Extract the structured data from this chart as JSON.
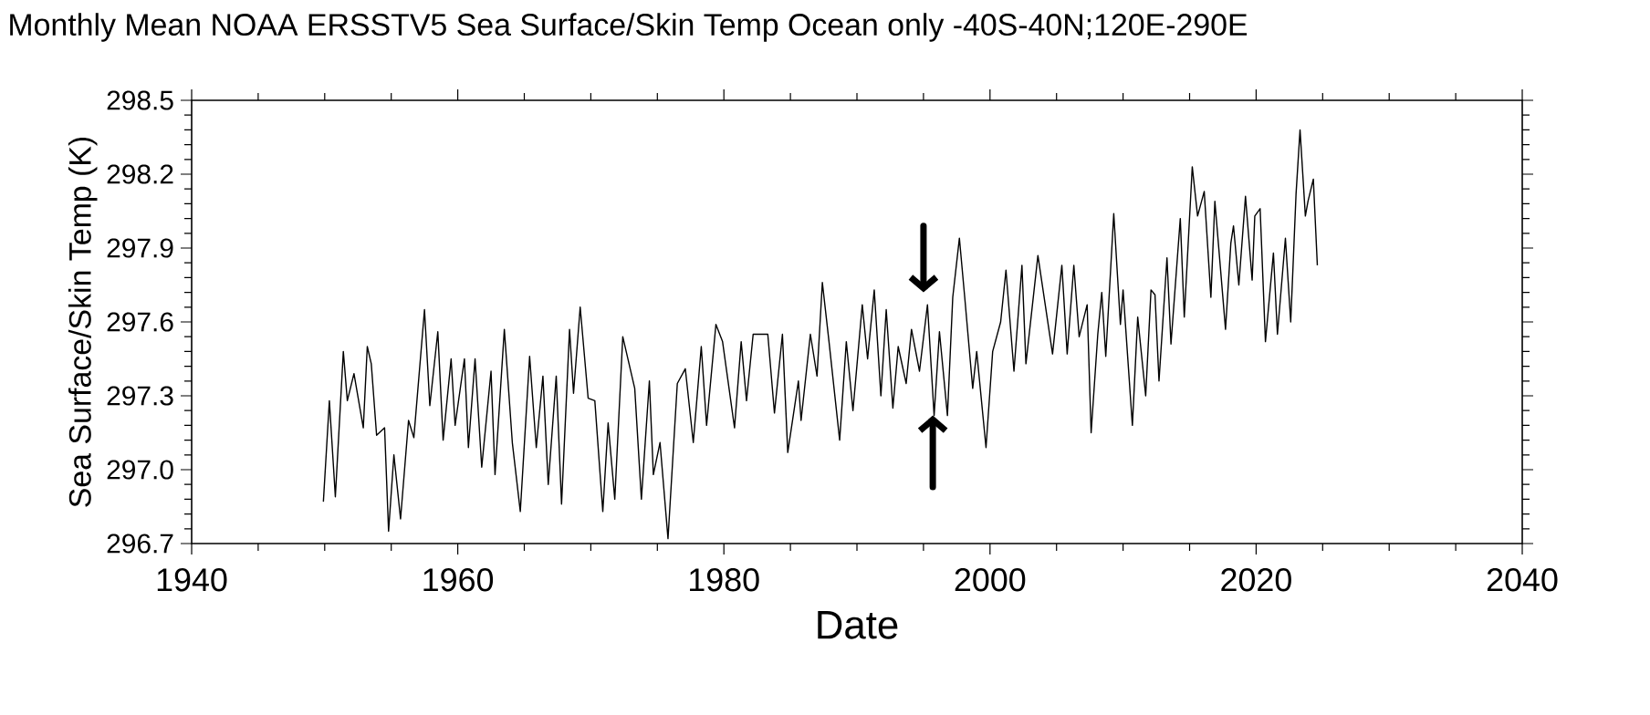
{
  "chart_data": {
    "type": "line",
    "title": "Monthly Mean NOAA ERSSTV5   Sea Surface/Skin Temp Ocean only -40S-40N;120E-290E",
    "xlabel": "Date",
    "ylabel": "Sea Surface/Skin Temp (K)",
    "xlim": [
      1940,
      2040
    ],
    "xticks": [
      1940,
      1960,
      1980,
      2000,
      2020,
      2040
    ],
    "ylim": [
      296.7,
      298.5
    ],
    "yticks": [
      {
        "value": 296.7,
        "label": "296.7"
      },
      {
        "value": 297.0,
        "label": "297.0"
      },
      {
        "value": 297.3,
        "label": "297.3"
      },
      {
        "value": 297.6,
        "label": "297.6"
      },
      {
        "value": 297.9,
        "label": "297.9"
      },
      {
        "value": 298.2,
        "label": "298.2"
      },
      {
        "value": 298.5,
        "label": "298.5"
      }
    ],
    "series": [
      {
        "color": "#000000",
        "x": [
          1949.9,
          1950.35,
          1950.8,
          1951.4,
          1951.7,
          1952.2,
          1952.9,
          1953.2,
          1953.5,
          1953.9,
          1954.5,
          1954.8,
          1955.2,
          1955.7,
          1956.3,
          1956.7,
          1957.5,
          1957.9,
          1958.5,
          1958.9,
          1959.5,
          1959.8,
          1960.5,
          1960.8,
          1961.3,
          1961.8,
          1962.5,
          1962.8,
          1963.5,
          1964.1,
          1964.7,
          1965.4,
          1965.9,
          1966.4,
          1966.8,
          1967.4,
          1967.8,
          1968.4,
          1968.7,
          1969.2,
          1969.8,
          1970.3,
          1970.9,
          1971.3,
          1971.8,
          1972.4,
          1973.3,
          1973.8,
          1974.4,
          1974.7,
          1975.2,
          1975.8,
          1976.5,
          1977.1,
          1977.7,
          1978.3,
          1978.7,
          1979.4,
          1979.9,
          1980.8,
          1981.3,
          1981.7,
          1982.2,
          1983.3,
          1983.8,
          1984.4,
          1984.8,
          1985.6,
          1985.8,
          1986.5,
          1987.0,
          1987.4,
          1987.9,
          1988.7,
          1989.2,
          1989.7,
          1990.4,
          1990.8,
          1991.3,
          1991.8,
          1992.2,
          1992.7,
          1993.1,
          1993.7,
          1994.1,
          1994.7,
          1995.3,
          1995.8,
          1996.2,
          1996.8,
          1997.2,
          1997.7,
          1998.1,
          1998.7,
          1999.0,
          1999.7,
          2000.2,
          2000.8,
          2001.2,
          2001.8,
          2002.4,
          2002.7,
          2003.6,
          2004.7,
          2005.4,
          2005.8,
          2006.3,
          2006.7,
          2007.3,
          2007.6,
          2008.1,
          2008.4,
          2008.7,
          2009.3,
          2009.8,
          2010.0,
          2010.7,
          2011.1,
          2011.7,
          2012.1,
          2012.4,
          2012.7,
          2013.3,
          2013.6,
          2014.3,
          2014.6,
          2015.2,
          2015.6,
          2016.1,
          2016.6,
          2016.9,
          2017.7,
          2018.1,
          2018.3,
          2018.7,
          2019.2,
          2019.7,
          2019.9,
          2020.3,
          2020.7,
          2021.3,
          2021.6,
          2022.2,
          2022.6,
          2023.0,
          2023.3,
          2023.7,
          2023.9,
          2024.3,
          2024.6
        ],
        "values": [
          296.87,
          297.28,
          296.89,
          297.48,
          297.28,
          297.39,
          297.17,
          297.5,
          297.43,
          297.14,
          297.17,
          296.75,
          297.06,
          296.8,
          297.2,
          297.13,
          297.65,
          297.26,
          297.56,
          297.12,
          297.45,
          297.18,
          297.45,
          297.09,
          297.45,
          297.01,
          297.4,
          296.98,
          297.57,
          297.11,
          296.83,
          297.46,
          297.09,
          297.38,
          296.94,
          297.38,
          296.86,
          297.57,
          297.31,
          297.66,
          297.29,
          297.28,
          296.83,
          297.19,
          296.88,
          297.54,
          297.33,
          296.88,
          297.36,
          296.98,
          297.11,
          296.72,
          297.35,
          297.41,
          297.11,
          297.5,
          297.18,
          297.59,
          297.52,
          297.17,
          297.52,
          297.28,
          297.55,
          297.55,
          297.23,
          297.55,
          297.07,
          297.36,
          297.2,
          297.55,
          297.38,
          297.76,
          297.52,
          297.12,
          297.52,
          297.24,
          297.67,
          297.45,
          297.73,
          297.3,
          297.65,
          297.25,
          297.5,
          297.35,
          297.57,
          297.4,
          297.67,
          297.22,
          297.56,
          297.22,
          297.7,
          297.94,
          297.7,
          297.33,
          297.48,
          297.09,
          297.48,
          297.6,
          297.81,
          297.4,
          297.83,
          297.43,
          297.87,
          297.47,
          297.83,
          297.47,
          297.83,
          297.54,
          297.67,
          297.15,
          297.55,
          297.72,
          297.46,
          298.04,
          297.59,
          297.73,
          297.18,
          297.62,
          297.3,
          297.73,
          297.71,
          297.36,
          297.86,
          297.51,
          298.02,
          297.62,
          298.23,
          298.03,
          298.13,
          297.7,
          298.09,
          297.57,
          297.92,
          297.99,
          297.75,
          298.11,
          297.77,
          298.03,
          298.06,
          297.52,
          297.88,
          297.55,
          297.94,
          297.6,
          298.12,
          298.38,
          298.03,
          298.09,
          298.18,
          297.83
        ]
      }
    ]
  }
}
